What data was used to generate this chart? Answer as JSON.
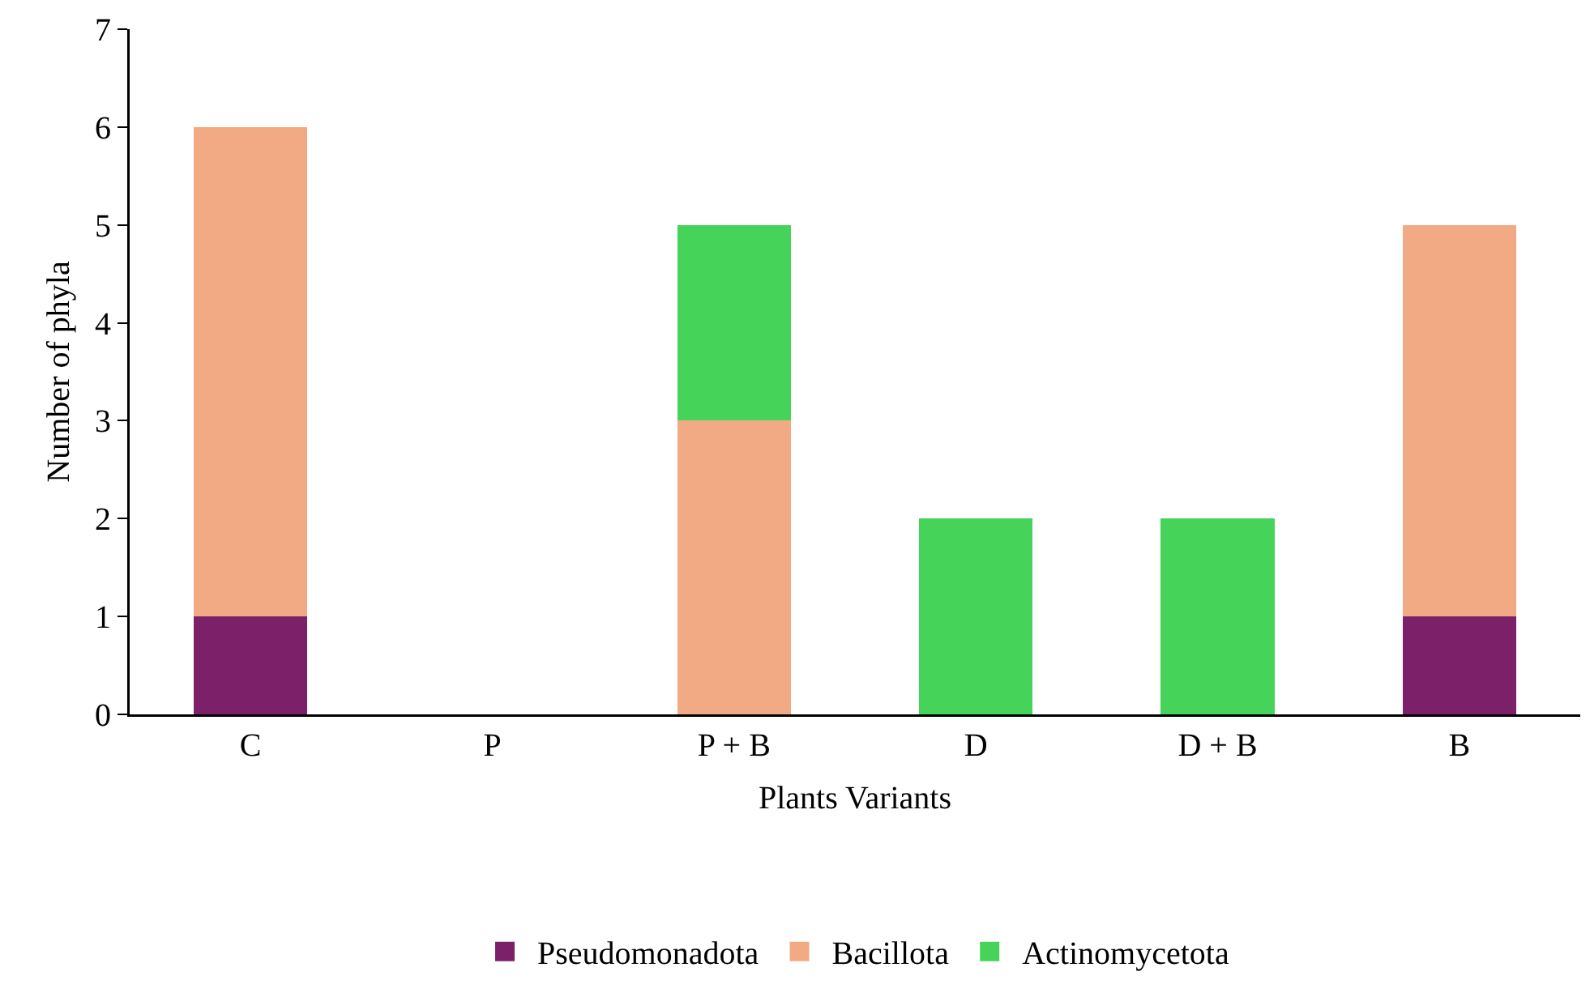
{
  "chart_data": {
    "type": "bar",
    "stacked": true,
    "xlabel": "Plants Variants",
    "ylabel": "Number of phyla",
    "categories": [
      "C",
      "P",
      "P + B",
      "D",
      "D + B",
      "B"
    ],
    "series": [
      {
        "name": "Pseudomonadota",
        "color": "#7b2069",
        "values": [
          1,
          0,
          0,
          0,
          0,
          1
        ]
      },
      {
        "name": "Bacillota",
        "color": "#f2aa84",
        "values": [
          5,
          0,
          3,
          0,
          0,
          4
        ]
      },
      {
        "name": "Actinomycetota",
        "color": "#46d35a",
        "values": [
          0,
          0,
          2,
          2,
          2,
          0
        ]
      }
    ],
    "ylim": [
      0,
      7
    ],
    "yticks": [
      0,
      1,
      2,
      3,
      4,
      5,
      6,
      7
    ],
    "grid": false,
    "legend": "bottom"
  }
}
